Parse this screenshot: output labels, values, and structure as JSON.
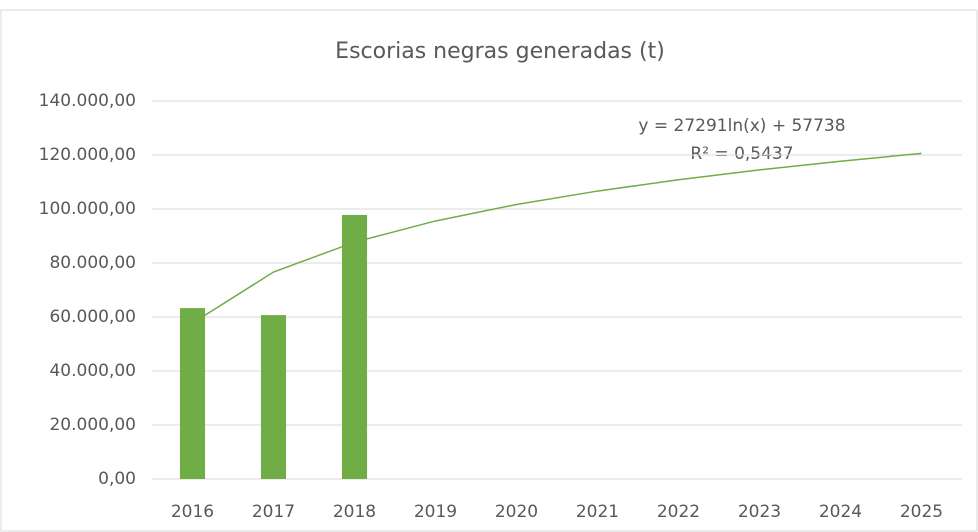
{
  "chart_data": {
    "type": "bar",
    "title": "Escorias negras generadas (t)",
    "categories": [
      "2016",
      "2017",
      "2018",
      "2019",
      "2020",
      "2021",
      "2022",
      "2023",
      "2024",
      "2025"
    ],
    "values": [
      63300,
      60700,
      97800,
      null,
      null,
      null,
      null,
      null,
      null,
      null
    ],
    "color": "#70ad47",
    "trendline": {
      "color": "#70ad47",
      "values": [
        57738,
        76655,
        87720,
        95570,
        101660,
        106640,
        110840,
        114490,
        117700,
        120580
      ]
    },
    "annotations": [
      "y = 27291ln(x) + 57738",
      "R² = 0,5437"
    ],
    "ylim": [
      0,
      140000
    ],
    "yticks": [
      {
        "value": 0,
        "label": "0,00"
      },
      {
        "value": 20000,
        "label": "20.000,00"
      },
      {
        "value": 40000,
        "label": "40.000,00"
      },
      {
        "value": 60000,
        "label": "60.000,00"
      },
      {
        "value": 80000,
        "label": "80.000,00"
      },
      {
        "value": 100000,
        "label": "100.000,00"
      },
      {
        "value": 120000,
        "label": "120.000,00"
      },
      {
        "value": 140000,
        "label": "140.000,00"
      }
    ],
    "grid": true
  }
}
